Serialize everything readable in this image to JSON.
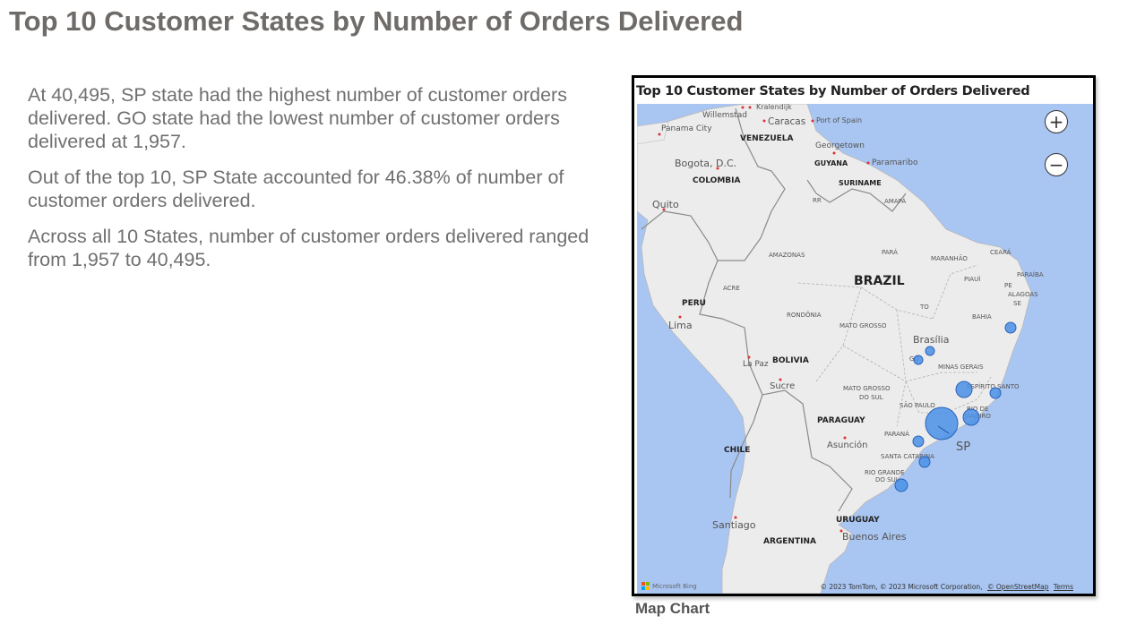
{
  "page": {
    "title": "Top 10 Customer States by Number of Orders Delivered"
  },
  "narrative": {
    "paragraphs": [
      "At 40,495, SP state had the highest number of customer orders delivered. GO state had the lowest number of customer orders delivered at 1,957.",
      "Out of the top 10, SP State accounted for 46.38% of number of customer orders delivered.",
      "Across all 10 States, number of customer orders delivered ranged from 1,957 to 40,495."
    ]
  },
  "map": {
    "title": "Top 10 Customer States by Number of Orders Delivered",
    "caption": "Map Chart",
    "zoom_in": "+",
    "zoom_out": "−",
    "bubble_color": "#4a90e8",
    "water_color": "#a9c5f1",
    "land_color": "#ececec",
    "attribution": "© 2023 TomTom, © 2023 Microsoft Corporation,",
    "osm_link": "© OpenStreetMap",
    "terms_link": "Terms",
    "bing_label": "Microsoft Bing",
    "pointer_label": "SP",
    "labels": {
      "willemstad": "Willemstad",
      "kralendijk": "Kralendijk",
      "panama": "Panama City",
      "caracas": "Caracas",
      "port_of_spain": "Port of Spain",
      "venezuela": "VENEZUELA",
      "georgetown": "Georgetown",
      "bogota": "Bogota, D.C.",
      "guyana": "GUYANA",
      "paramaribo": "Paramaribo",
      "colombia": "COLOMBIA",
      "suriname": "SURINAME",
      "quito": "Quito",
      "rr": "RR",
      "amapa": "AMAPÁ",
      "amazonas": "AMAZONAS",
      "para": "PARÁ",
      "maranhao": "MARANHÃO",
      "ceara": "CEARÁ",
      "brazil": "BRAZIL",
      "piaui": "PIAUÍ",
      "paraiba": "PARAÍBA",
      "pe": "PE",
      "alagoas": "ALAGOAS",
      "se": "SE",
      "acre": "ACRE",
      "peru": "PERU",
      "rondonia": "RONDÔNIA",
      "to": "TO",
      "bahia": "BAHIA",
      "lima": "Lima",
      "mato_grosso": "MATO GROSSO",
      "brasilia": "Brasília",
      "go": "GO",
      "bolivia": "BOLIVIA",
      "la_paz": "La Paz",
      "minas_gerais": "MINAS GERAIS",
      "sucre": "Sucre",
      "ms_1": "MATO GROSSO",
      "ms_2": "DO SUL",
      "espirito_santo": "ESPÍRITO SANTO",
      "sao_paulo": "SÃO PAULO",
      "rio_1": "RIO DE",
      "rio_2": "JANEIRO",
      "paraguay": "PARAGUAY",
      "parana": "PARANÁ",
      "asuncion": "Asunción",
      "chile": "CHILE",
      "santa_catarina": "SANTA CATARINA",
      "rs_1": "RIO GRANDE",
      "rs_2": "DO SUL",
      "uruguay": "URUGUAY",
      "santiago": "Santiago",
      "buenos_aires": "Buenos Aires",
      "argentina": "ARGENTINA"
    }
  }
}
